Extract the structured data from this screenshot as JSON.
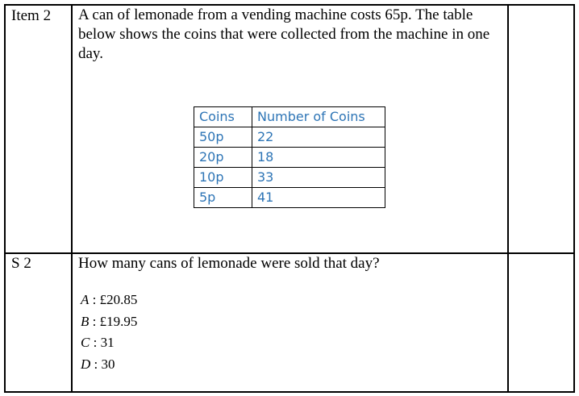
{
  "item": {
    "label": "Item 2",
    "text": "A can of lemonade from a vending machine costs 65p. The table below shows the coins that were collected from the machine in one day.",
    "table": {
      "headers": [
        "Coins",
        "Number of Coins"
      ],
      "rows": [
        [
          "50p",
          "22"
        ],
        [
          "20p",
          "18"
        ],
        [
          "10p",
          "33"
        ],
        [
          "5p",
          "41"
        ]
      ]
    }
  },
  "question": {
    "label": "S 2",
    "text": "How many cans of lemonade were sold that day?",
    "options": [
      {
        "letter": "A",
        "value": "£20.85"
      },
      {
        "letter": "B",
        "value": "£19.95"
      },
      {
        "letter": "C",
        "value": "31"
      },
      {
        "letter": "D",
        "value": "30"
      }
    ]
  }
}
